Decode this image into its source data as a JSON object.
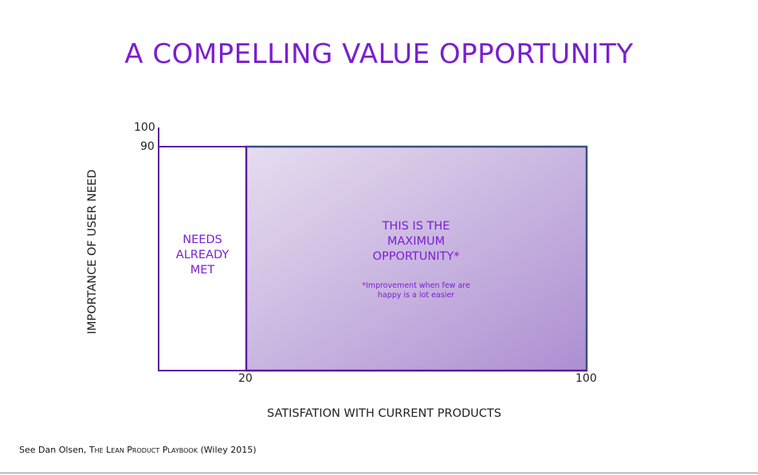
{
  "title": "A COMPELLING VALUE OPPORTUNITY",
  "axes": {
    "y_label": "IMPORTANCE OF USER NEED",
    "x_label": "SATISFATION WITH CURRENT PRODUCTS",
    "y_ticks": [
      "100",
      "90"
    ],
    "x_ticks": [
      "20",
      "100"
    ]
  },
  "regions": {
    "needs_met": {
      "label_lines": [
        "NEEDS",
        "ALREADY",
        "MET"
      ],
      "x_range": [
        0,
        20
      ],
      "y_range": [
        0,
        90
      ]
    },
    "opportunity": {
      "label_lines": [
        "THIS IS THE",
        "MAXIMUM",
        "OPPORTUNITY*"
      ],
      "note_lines": [
        "*Improvement when few are",
        "happy is a lot easier"
      ],
      "x_range": [
        20,
        100
      ],
      "y_range": [
        0,
        90
      ]
    }
  },
  "footer": {
    "prefix": "See Dan Olsen, ",
    "book": "The Lean Product Playbook",
    "suffix": " (Wiley 2015)"
  },
  "colors": {
    "title": "#7a1fd1",
    "region_text": "#7a1fd1",
    "axis_line": "#5b1a9c",
    "opportunity_border": "#3b4f7d",
    "opportunity_fill_start": "#e6ddef",
    "opportunity_fill_end": "#ad8fd2"
  }
}
